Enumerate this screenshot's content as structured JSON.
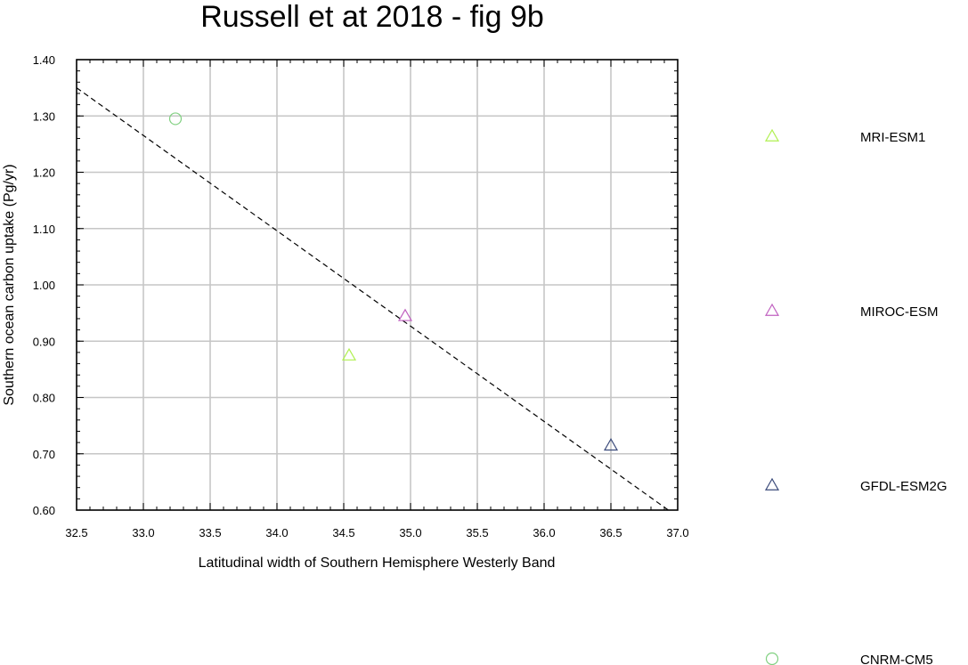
{
  "chart_data": {
    "type": "scatter",
    "title": "Russell et at 2018 - fig 9b",
    "xlabel": "Latitudinal width of Southern Hemisphere Westerly Band",
    "ylabel": "Southern ocean carbon uptake (Pg/yr)",
    "xlim": [
      32.5,
      37.0
    ],
    "ylim": [
      0.6,
      1.4
    ],
    "xticks": [
      "32.5",
      "33.0",
      "33.5",
      "34.0",
      "34.5",
      "35.0",
      "35.5",
      "36.0",
      "36.5",
      "37.0"
    ],
    "yticks": [
      "0.60",
      "0.70",
      "0.80",
      "0.90",
      "1.00",
      "1.10",
      "1.20",
      "1.30",
      "1.40"
    ],
    "grid": true,
    "legend_position": "right",
    "series": [
      {
        "name": "MRI-ESM1",
        "marker": "triangle",
        "color": "#b0f050",
        "x": 34.54,
        "y": 0.875
      },
      {
        "name": "MIROC-ESM",
        "marker": "triangle",
        "color": "#c060c0",
        "x": 34.96,
        "y": 0.945
      },
      {
        "name": "GFDL-ESM2G",
        "marker": "triangle",
        "color": "#3a4a7a",
        "x": 36.5,
        "y": 0.715
      },
      {
        "name": "CNRM-CM5",
        "marker": "circle",
        "color": "#80d080",
        "x": 33.24,
        "y": 1.295
      }
    ],
    "regression_line": {
      "style": "dashed",
      "color": "#000000",
      "x": [
        32.5,
        36.93
      ],
      "y": [
        1.35,
        0.6
      ]
    }
  }
}
